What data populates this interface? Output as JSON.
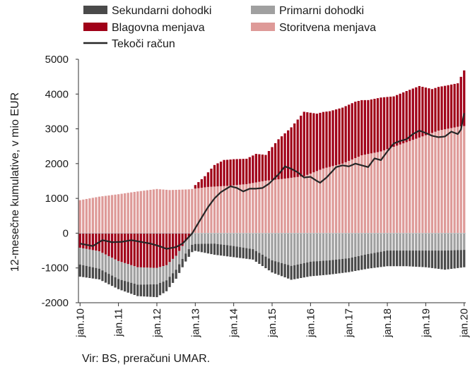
{
  "chart_data": {
    "type": "bar",
    "subtype": "stacked-bar-with-line",
    "ylabel": "12-mesečne kumulative, v mio EUR",
    "ylim": [
      -2000,
      5000
    ],
    "yticks": [
      -2000,
      -1000,
      0,
      1000,
      2000,
      3000,
      4000,
      5000
    ],
    "x_tick_labels": [
      "jan.10",
      "jan.11",
      "jan.12",
      "jan.13",
      "jan.14",
      "jan.15",
      "jan.16",
      "jan.17",
      "jan.18",
      "jan.19",
      "jan.20"
    ],
    "months_per_tick": 12,
    "legend": {
      "placement": "top",
      "entries": [
        {
          "key": "sekundarni",
          "label": "Sekundarni dohodki"
        },
        {
          "key": "primarni",
          "label": "Primarni dohodki"
        },
        {
          "key": "blagovna",
          "label": "Blagovna menjava"
        },
        {
          "key": "storitvena",
          "label": "Storitvena menjava"
        },
        {
          "key": "tekoci",
          "label": "Tekoči račun"
        }
      ]
    },
    "colors": {
      "sekundarni": "#4a4a4a",
      "primarni": "#a0a0a0",
      "blagovna": "#a00018",
      "storitvena": "#de9a98",
      "tekoci": "#262626"
    },
    "series_anchors": {
      "storitvena": [
        [
          0,
          950
        ],
        [
          6,
          1050
        ],
        [
          12,
          1120
        ],
        [
          18,
          1200
        ],
        [
          24,
          1270
        ],
        [
          28,
          1240
        ],
        [
          34,
          1260
        ],
        [
          40,
          1330
        ],
        [
          46,
          1360
        ],
        [
          52,
          1410
        ],
        [
          58,
          1510
        ],
        [
          64,
          1570
        ],
        [
          70,
          1640
        ],
        [
          76,
          1860
        ],
        [
          82,
          2000
        ],
        [
          88,
          2240
        ],
        [
          94,
          2350
        ],
        [
          100,
          2550
        ],
        [
          106,
          2750
        ],
        [
          112,
          2950
        ],
        [
          118,
          3060
        ],
        [
          120,
          3080
        ]
      ],
      "blagovna": [
        [
          0,
          -420
        ],
        [
          6,
          -520
        ],
        [
          12,
          -800
        ],
        [
          18,
          -980
        ],
        [
          24,
          -1000
        ],
        [
          27,
          -920
        ],
        [
          30,
          -650
        ],
        [
          33,
          -230
        ],
        [
          36,
          100
        ],
        [
          39,
          320
        ],
        [
          42,
          620
        ],
        [
          45,
          750
        ],
        [
          48,
          750
        ],
        [
          52,
          730
        ],
        [
          55,
          820
        ],
        [
          58,
          740
        ],
        [
          62,
          1150
        ],
        [
          66,
          1450
        ],
        [
          70,
          1850
        ],
        [
          74,
          1650
        ],
        [
          78,
          1600
        ],
        [
          82,
          1610
        ],
        [
          86,
          1620
        ],
        [
          90,
          1550
        ],
        [
          94,
          1550
        ],
        [
          98,
          1450
        ],
        [
          102,
          1470
        ],
        [
          106,
          1480
        ],
        [
          110,
          1260
        ],
        [
          114,
          1250
        ],
        [
          118,
          1250
        ],
        [
          120,
          1600
        ]
      ],
      "primarni": [
        [
          0,
          -480
        ],
        [
          6,
          -500
        ],
        [
          12,
          -520
        ],
        [
          18,
          -500
        ],
        [
          24,
          -470
        ],
        [
          30,
          -400
        ],
        [
          36,
          -310
        ],
        [
          42,
          -300
        ],
        [
          48,
          -370
        ],
        [
          54,
          -460
        ],
        [
          60,
          -780
        ],
        [
          66,
          -940
        ],
        [
          72,
          -820
        ],
        [
          78,
          -780
        ],
        [
          84,
          -720
        ],
        [
          90,
          -600
        ],
        [
          96,
          -500
        ],
        [
          102,
          -500
        ],
        [
          108,
          -500
        ],
        [
          114,
          -500
        ],
        [
          120,
          -480
        ]
      ],
      "sekundarni": [
        [
          0,
          -350
        ],
        [
          6,
          -310
        ],
        [
          12,
          -290
        ],
        [
          18,
          -330
        ],
        [
          24,
          -370
        ],
        [
          30,
          -260
        ],
        [
          36,
          -200
        ],
        [
          42,
          -320
        ],
        [
          48,
          -320
        ],
        [
          54,
          -300
        ],
        [
          60,
          -350
        ],
        [
          66,
          -400
        ],
        [
          72,
          -420
        ],
        [
          78,
          -410
        ],
        [
          84,
          -400
        ],
        [
          90,
          -420
        ],
        [
          96,
          -450
        ],
        [
          102,
          -450
        ],
        [
          108,
          -480
        ],
        [
          114,
          -550
        ],
        [
          120,
          -500
        ]
      ],
      "tekoci": [
        [
          0,
          -300
        ],
        [
          4,
          -370
        ],
        [
          7,
          -200
        ],
        [
          10,
          -260
        ],
        [
          13,
          -250
        ],
        [
          16,
          -200
        ],
        [
          19,
          -250
        ],
        [
          22,
          -300
        ],
        [
          25,
          -380
        ],
        [
          27,
          -450
        ],
        [
          30,
          -400
        ],
        [
          32,
          -300
        ],
        [
          35,
          -10
        ],
        [
          37,
          300
        ],
        [
          40,
          750
        ],
        [
          42,
          1000
        ],
        [
          44,
          1180
        ],
        [
          47,
          1350
        ],
        [
          49,
          1300
        ],
        [
          51,
          1200
        ],
        [
          53,
          1280
        ],
        [
          55,
          1280
        ],
        [
          57,
          1300
        ],
        [
          59,
          1420
        ],
        [
          62,
          1690
        ],
        [
          64,
          1920
        ],
        [
          66,
          1850
        ],
        [
          68,
          1750
        ],
        [
          70,
          1600
        ],
        [
          72,
          1620
        ],
        [
          74,
          1500
        ],
        [
          75,
          1450
        ],
        [
          77,
          1600
        ],
        [
          80,
          1900
        ],
        [
          82,
          1950
        ],
        [
          84,
          1920
        ],
        [
          86,
          2000
        ],
        [
          88,
          1950
        ],
        [
          90,
          1900
        ],
        [
          92,
          2150
        ],
        [
          94,
          2100
        ],
        [
          96,
          2350
        ],
        [
          98,
          2580
        ],
        [
          100,
          2650
        ],
        [
          102,
          2700
        ],
        [
          104,
          2850
        ],
        [
          106,
          2950
        ],
        [
          108,
          2880
        ],
        [
          110,
          2800
        ],
        [
          112,
          2760
        ],
        [
          114,
          2780
        ],
        [
          116,
          2920
        ],
        [
          118,
          2850
        ],
        [
          119,
          2980
        ],
        [
          120,
          3450
        ]
      ]
    },
    "source": "Vir: BS, preračuni UMAR."
  }
}
